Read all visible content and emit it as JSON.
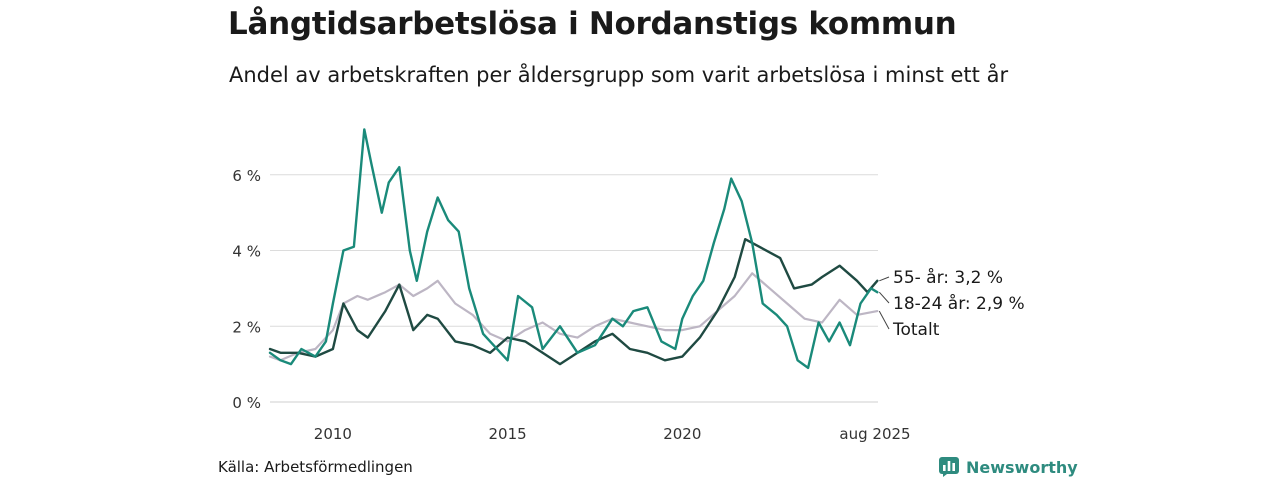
{
  "title": "Långtidsarbetslösa i Nordanstigs kommun",
  "subtitle": "Andel av arbetskraften per åldersgrupp som varit arbetslösa i minst ett år",
  "source": "Källa: Arbetsförmedlingen",
  "brand": "Newsworthy",
  "colors": {
    "young": "#1a8a7a",
    "old": "#1f4a42",
    "total": "#bdb6c4",
    "grid": "#dcdcdc",
    "brand": "#2e8b7f"
  },
  "chart_data": {
    "type": "line",
    "x_unit": "year",
    "xlim": [
      2008.2,
      2025.6
    ],
    "ylim": [
      0,
      7.5
    ],
    "y_ticks": [
      0,
      2,
      4,
      6
    ],
    "y_tick_labels": [
      "0 %",
      "2 %",
      "4 %",
      "6 %"
    ],
    "x_ticks": [
      2010,
      2015,
      2020,
      2025.58
    ],
    "x_tick_labels": [
      "2010",
      "2015",
      "2020",
      "aug 2025"
    ],
    "grid": true,
    "series": [
      {
        "name": "Totalt",
        "label": "Totalt",
        "color": "#bdb6c4",
        "x": [
          2008.2,
          2008.5,
          2009.0,
          2009.5,
          2010.0,
          2010.3,
          2010.7,
          2011.0,
          2011.5,
          2011.9,
          2012.3,
          2012.7,
          2013.0,
          2013.5,
          2014.0,
          2014.5,
          2015.0,
          2015.5,
          2016.0,
          2016.5,
          2017.0,
          2017.5,
          2018.0,
          2018.5,
          2019.0,
          2019.5,
          2020.0,
          2020.5,
          2021.0,
          2021.5,
          2022.0,
          2022.5,
          2023.0,
          2023.5,
          2024.0,
          2024.5,
          2025.0,
          2025.58
        ],
        "y": [
          1.2,
          1.1,
          1.3,
          1.4,
          1.9,
          2.6,
          2.8,
          2.7,
          2.9,
          3.1,
          2.8,
          3.0,
          3.2,
          2.6,
          2.3,
          1.8,
          1.6,
          1.9,
          2.1,
          1.8,
          1.7,
          2.0,
          2.2,
          2.1,
          2.0,
          1.9,
          1.9,
          2.0,
          2.4,
          2.8,
          3.4,
          3.0,
          2.6,
          2.2,
          2.1,
          2.7,
          2.3,
          2.4
        ]
      },
      {
        "name": "55- år",
        "label": "55- år: 3,2 %",
        "color": "#1f4a42",
        "x": [
          2008.2,
          2008.5,
          2009.0,
          2009.5,
          2010.0,
          2010.3,
          2010.7,
          2011.0,
          2011.5,
          2011.9,
          2012.3,
          2012.7,
          2013.0,
          2013.5,
          2014.0,
          2014.5,
          2015.0,
          2015.5,
          2016.0,
          2016.5,
          2017.0,
          2017.5,
          2018.0,
          2018.5,
          2019.0,
          2019.5,
          2020.0,
          2020.5,
          2021.0,
          2021.5,
          2021.8,
          2022.2,
          2022.8,
          2023.2,
          2023.7,
          2024.0,
          2024.5,
          2025.0,
          2025.3,
          2025.58
        ],
        "y": [
          1.4,
          1.3,
          1.3,
          1.2,
          1.4,
          2.6,
          1.9,
          1.7,
          2.4,
          3.1,
          1.9,
          2.3,
          2.2,
          1.6,
          1.5,
          1.3,
          1.7,
          1.6,
          1.3,
          1.0,
          1.3,
          1.6,
          1.8,
          1.4,
          1.3,
          1.1,
          1.2,
          1.7,
          2.4,
          3.3,
          4.3,
          4.1,
          3.8,
          3.0,
          3.1,
          3.3,
          3.6,
          3.2,
          2.9,
          3.2
        ]
      },
      {
        "name": "18-24 år",
        "label": "18-24 år: 2,9 %",
        "color": "#1a8a7a",
        "x": [
          2008.2,
          2008.5,
          2008.8,
          2009.1,
          2009.5,
          2009.8,
          2010.0,
          2010.3,
          2010.6,
          2010.9,
          2011.1,
          2011.4,
          2011.6,
          2011.9,
          2012.2,
          2012.4,
          2012.7,
          2013.0,
          2013.3,
          2013.6,
          2013.9,
          2014.3,
          2014.8,
          2015.0,
          2015.3,
          2015.7,
          2016.0,
          2016.5,
          2017.0,
          2017.5,
          2018.0,
          2018.3,
          2018.6,
          2019.0,
          2019.4,
          2019.8,
          2020.0,
          2020.3,
          2020.6,
          2020.9,
          2021.2,
          2021.4,
          2021.7,
          2022.0,
          2022.3,
          2022.7,
          2023.0,
          2023.3,
          2023.6,
          2023.9,
          2024.2,
          2024.5,
          2024.8,
          2025.1,
          2025.4,
          2025.58
        ],
        "y": [
          1.3,
          1.1,
          1.0,
          1.4,
          1.2,
          1.6,
          2.6,
          4.0,
          4.1,
          7.2,
          6.3,
          5.0,
          5.8,
          6.2,
          4.0,
          3.2,
          4.5,
          5.4,
          4.8,
          4.5,
          3.0,
          1.8,
          1.3,
          1.1,
          2.8,
          2.5,
          1.4,
          2.0,
          1.3,
          1.5,
          2.2,
          2.0,
          2.4,
          2.5,
          1.6,
          1.4,
          2.2,
          2.8,
          3.2,
          4.2,
          5.1,
          5.9,
          5.3,
          4.2,
          2.6,
          2.3,
          2.0,
          1.1,
          0.9,
          2.1,
          1.6,
          2.1,
          1.5,
          2.6,
          3.0,
          2.9
        ]
      }
    ]
  }
}
